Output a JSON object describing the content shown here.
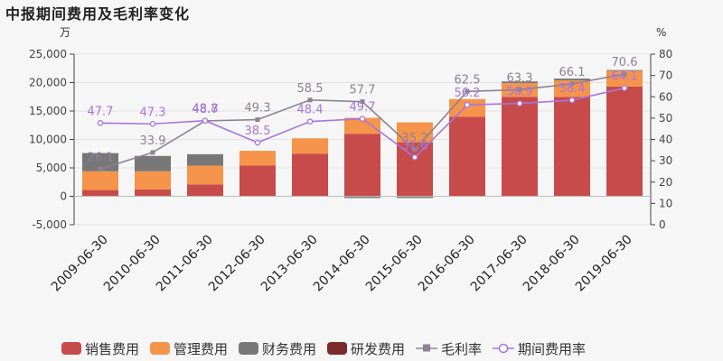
{
  "page": {
    "title": "中报期间费用及毛利率变化"
  },
  "chart_data": {
    "type": "bar",
    "title": "中报期间费用及毛利率变化",
    "categories": [
      "2009-06-30",
      "2010-06-30",
      "2011-06-30",
      "2012-06-30",
      "2013-06-30",
      "2014-06-30",
      "2015-06-30",
      "2016-06-30",
      "2017-06-30",
      "2018-06-30",
      "2019-06-30"
    ],
    "left_axis": {
      "unit": "万",
      "ylim": [
        -5000,
        25000
      ],
      "ticks": [
        "-5,000",
        "0",
        "5,000",
        "10,000",
        "15,000",
        "20,000",
        "25,000"
      ],
      "tick_values": [
        -5000,
        0,
        5000,
        10000,
        15000,
        20000,
        25000
      ]
    },
    "right_axis": {
      "unit": "%",
      "ylim": [
        0,
        80
      ],
      "ticks": [
        "0",
        "10",
        "20",
        "30",
        "40",
        "50",
        "60",
        "70",
        "80"
      ],
      "tick_values": [
        0,
        10,
        20,
        30,
        40,
        50,
        60,
        70,
        80
      ]
    },
    "series": [
      {
        "name": "销售费用",
        "kind": "bar",
        "color": "#c84b4b",
        "values": [
          1100,
          1200,
          2100,
          5400,
          7500,
          11000,
          9500,
          14000,
          17500,
          17500,
          19300
        ]
      },
      {
        "name": "管理费用",
        "kind": "bar",
        "color": "#f5944a",
        "values": [
          3300,
          3200,
          3300,
          2600,
          2700,
          2800,
          3500,
          3100,
          2400,
          2900,
          2800
        ]
      },
      {
        "name": "财务费用",
        "kind": "bar",
        "color": "#777777",
        "values": [
          3200,
          2700,
          2000,
          0,
          0,
          -300,
          -300,
          0,
          300,
          300,
          100
        ]
      },
      {
        "name": "研发费用",
        "kind": "bar",
        "color": "#7a2a2a",
        "values": [
          0,
          0,
          0,
          0,
          0,
          0,
          0,
          0,
          0,
          0,
          0
        ]
      },
      {
        "name": "毛利率",
        "kind": "line",
        "axis": "right",
        "color": "#8c8294",
        "values": [
          26.1,
          33.9,
          48.7,
          49.3,
          58.5,
          57.7,
          35.2,
          62.5,
          63.3,
          66.1,
          70.6
        ],
        "labels": [
          "26.1",
          "33.9",
          "48.7",
          "49.3",
          "58.5",
          "57.7",
          "35.2",
          "62.5",
          "63.3",
          "66.1",
          "70.6"
        ]
      },
      {
        "name": "期间费用率",
        "kind": "line",
        "axis": "right",
        "color": "#a874e0",
        "values": [
          47.7,
          47.3,
          48.8,
          38.5,
          48.4,
          49.7,
          31.6,
          56.2,
          56.9,
          58.4,
          64.1
        ],
        "labels": [
          "47.7",
          "47.3",
          "48.8",
          "38.5",
          "48.4",
          "49.7",
          "31.6",
          "56.2",
          "56.9",
          "58.4",
          "64.1"
        ]
      }
    ],
    "legend": {
      "position": "bottom"
    },
    "grid": true
  }
}
